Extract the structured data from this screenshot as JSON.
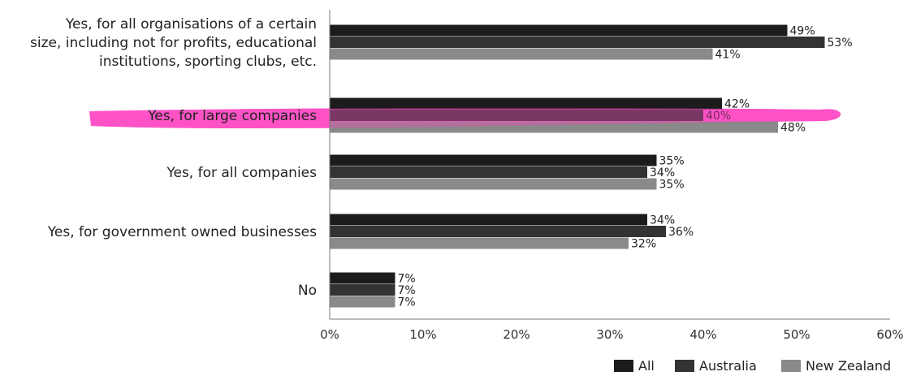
{
  "chart_data": {
    "type": "bar",
    "orientation": "horizontal",
    "categories": [
      [
        "Yes, for all organisations of a certain",
        "size, including not for profits, educational",
        "institutions, sporting clubs, etc."
      ],
      [
        "Yes, for large companies"
      ],
      [
        "Yes, for all companies"
      ],
      [
        "Yes, for government owned businesses"
      ],
      [
        "No"
      ]
    ],
    "series": [
      {
        "name": "All",
        "color": "#1c1c1c",
        "values": [
          49,
          42,
          35,
          34,
          7
        ]
      },
      {
        "name": "Australia",
        "color": "#333333",
        "values": [
          53,
          40,
          34,
          36,
          7
        ]
      },
      {
        "name": "New Zealand",
        "color": "#8a8a8a",
        "values": [
          41,
          48,
          35,
          32,
          7
        ]
      }
    ],
    "value_suffix": "%",
    "xlim": [
      0,
      60
    ],
    "xticks": [
      0,
      10,
      20,
      30,
      40,
      50,
      60
    ],
    "xtick_labels": [
      "0%",
      "10%",
      "20%",
      "30%",
      "40%",
      "50%",
      "60%"
    ],
    "legend_position": "bottom-right",
    "highlight": {
      "category_index": 1,
      "color": "#ff3fc0"
    },
    "grid": false
  }
}
